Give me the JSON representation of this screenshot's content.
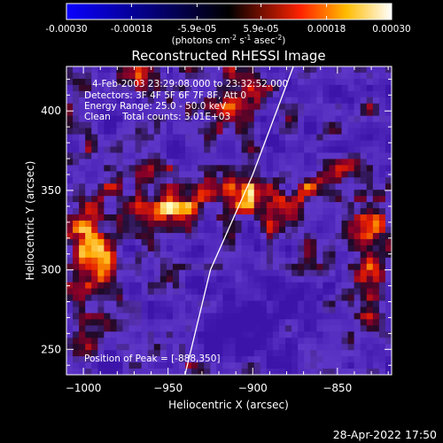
{
  "colorbar": {
    "tick_labels": [
      "-0.00030",
      "-0.00018",
      "-5.9e-05",
      "5.9e-05",
      "0.00018",
      "0.00030"
    ],
    "tick_values": [
      -0.0003,
      -0.00018,
      -5.9e-05,
      5.9e-05,
      0.00018,
      0.0003
    ],
    "range": [
      -0.0003,
      0.0003
    ],
    "units_label": "(photons cm",
    "units_exp1": "-2",
    "units_mid1": " s",
    "units_exp2": "-1",
    "units_mid2": " asec",
    "units_exp3": "-2",
    "units_end": ")",
    "colors": [
      "#0a00ff",
      "#000000",
      "#ff0000",
      "#ffcc00",
      "#ffffff"
    ]
  },
  "chart_data": {
    "type": "heatmap",
    "title": "Reconstructed RHESSI Image",
    "xlabel": "Heliocentric X (arcsec)",
    "ylabel": "Heliocentric Y (arcsec)",
    "xlim": [
      -1010,
      -818
    ],
    "ylim": [
      234,
      428
    ],
    "x_ticks": [
      -1000,
      -950,
      -900,
      -850
    ],
    "x_tick_labels": [
      "−1000",
      "−950",
      "−900",
      "−850"
    ],
    "y_ticks": [
      250,
      300,
      350,
      400
    ],
    "y_tick_labels": [
      "250",
      "300",
      "350",
      "400"
    ],
    "limb": [
      [
        -940,
        234
      ],
      [
        -925,
        300
      ],
      [
        -900,
        360
      ],
      [
        -876,
        428
      ]
    ],
    "peak": [
      -888,
      350
    ],
    "annotations": [
      "4-Feb-2003 23:29:08.000 to 23:32:52.000",
      "Detectors: 3F 4F 5F 6F 7F 8F, Att 0",
      "Energy Range: 25.0 - 50.0 keV",
      "Clean    Total counts: 3.01E+03"
    ],
    "peak_label": "Position of Peak = [-888,350]"
  },
  "footer": {
    "timestamp": "28-Apr-2022 17:50"
  }
}
